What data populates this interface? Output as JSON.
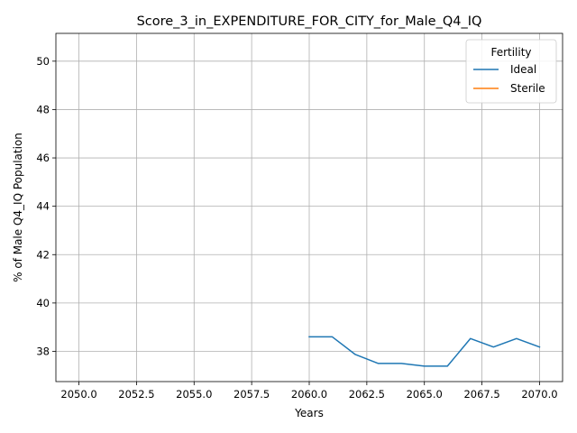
{
  "chart_data": {
    "type": "line",
    "title": "Score_3_in_EXPENDITURE_FOR_CITY_for_Male_Q4_IQ",
    "xlabel": "Years",
    "ylabel": "% of Male Q4_IQ Population",
    "xlim": [
      2049.0,
      2071.0
    ],
    "ylim": [
      36.75,
      51.15
    ],
    "grid": true,
    "xticks": [
      2050.0,
      2052.5,
      2055.0,
      2057.5,
      2060.0,
      2062.5,
      2065.0,
      2067.5,
      2070.0
    ],
    "xtick_labels": [
      "2050.0",
      "2052.5",
      "2055.0",
      "2057.5",
      "2060.0",
      "2062.5",
      "2065.0",
      "2067.5",
      "2070.0"
    ],
    "yticks": [
      38,
      40,
      42,
      44,
      46,
      48,
      50
    ],
    "ytick_labels": [
      "38",
      "40",
      "42",
      "44",
      "46",
      "48",
      "50"
    ],
    "legend": {
      "title": "Fertility",
      "placement": "top-right"
    },
    "series": [
      {
        "name": "Ideal",
        "color": "#1f77b4",
        "x": [
          2060,
          2061,
          2062,
          2063,
          2064,
          2065,
          2066,
          2067,
          2068,
          2069,
          2070
        ],
        "y": [
          38.6,
          38.6,
          37.87,
          37.5,
          37.5,
          37.39,
          37.39,
          38.53,
          38.18,
          38.53,
          38.18
        ]
      },
      {
        "name": "Sterile",
        "color": "#ff7f0e",
        "x": [],
        "y": []
      }
    ]
  }
}
